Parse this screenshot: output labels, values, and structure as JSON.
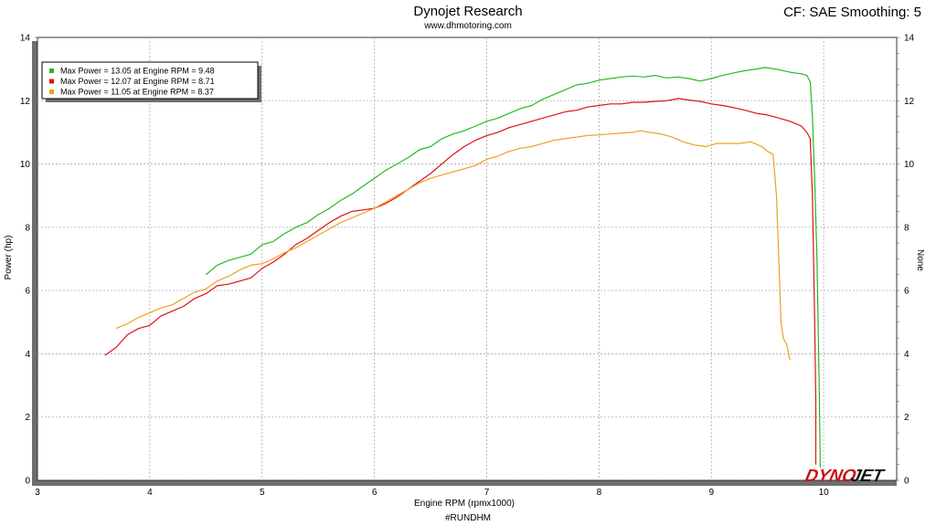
{
  "header": {
    "title": "Dynojet Research",
    "subtitle": "www.dhmotoring.com",
    "correction": "CF: SAE Smoothing: 5"
  },
  "footer": {
    "tag": "#RUNDHM"
  },
  "logo": {
    "text": "DYNOJET",
    "part1": "DYNO",
    "part2": "JET"
  },
  "chart_data": {
    "type": "line",
    "xlabel": "Engine RPM (rpmx1000)",
    "ylabel": "Power (hp)",
    "y2label": "None",
    "xlim": [
      3,
      10.65
    ],
    "ylim": [
      0,
      14
    ],
    "xticks": [
      3,
      4,
      5,
      6,
      7,
      8,
      9,
      10
    ],
    "yticks": [
      0,
      2,
      4,
      6,
      8,
      10,
      12,
      14
    ],
    "grid": true,
    "legend_position": "top-left",
    "series": [
      {
        "name": "Max Power = 13.05 at Engine RPM = 9.48",
        "color": "#22bb22",
        "points": [
          [
            4.5,
            6.5
          ],
          [
            4.6,
            6.8
          ],
          [
            4.7,
            6.95
          ],
          [
            4.8,
            7.05
          ],
          [
            4.9,
            7.15
          ],
          [
            5.0,
            7.45
          ],
          [
            5.1,
            7.55
          ],
          [
            5.2,
            7.8
          ],
          [
            5.3,
            8.0
          ],
          [
            5.4,
            8.15
          ],
          [
            5.5,
            8.4
          ],
          [
            5.6,
            8.6
          ],
          [
            5.7,
            8.85
          ],
          [
            5.8,
            9.05
          ],
          [
            5.9,
            9.3
          ],
          [
            6.0,
            9.55
          ],
          [
            6.1,
            9.8
          ],
          [
            6.2,
            10.0
          ],
          [
            6.3,
            10.2
          ],
          [
            6.4,
            10.45
          ],
          [
            6.5,
            10.55
          ],
          [
            6.6,
            10.8
          ],
          [
            6.7,
            10.95
          ],
          [
            6.8,
            11.05
          ],
          [
            6.9,
            11.2
          ],
          [
            7.0,
            11.35
          ],
          [
            7.1,
            11.45
          ],
          [
            7.2,
            11.6
          ],
          [
            7.3,
            11.75
          ],
          [
            7.4,
            11.85
          ],
          [
            7.5,
            12.05
          ],
          [
            7.6,
            12.2
          ],
          [
            7.7,
            12.35
          ],
          [
            7.8,
            12.5
          ],
          [
            7.9,
            12.55
          ],
          [
            8.0,
            12.65
          ],
          [
            8.1,
            12.7
          ],
          [
            8.2,
            12.75
          ],
          [
            8.3,
            12.78
          ],
          [
            8.4,
            12.75
          ],
          [
            8.5,
            12.8
          ],
          [
            8.6,
            12.72
          ],
          [
            8.7,
            12.75
          ],
          [
            8.8,
            12.7
          ],
          [
            8.9,
            12.62
          ],
          [
            9.0,
            12.7
          ],
          [
            9.1,
            12.8
          ],
          [
            9.2,
            12.88
          ],
          [
            9.3,
            12.95
          ],
          [
            9.4,
            13.0
          ],
          [
            9.48,
            13.05
          ],
          [
            9.6,
            12.98
          ],
          [
            9.7,
            12.9
          ],
          [
            9.8,
            12.85
          ],
          [
            9.85,
            12.8
          ],
          [
            9.88,
            12.6
          ],
          [
            9.9,
            11.5
          ],
          [
            9.92,
            9.5
          ],
          [
            9.94,
            7.0
          ],
          [
            9.96,
            3.0
          ],
          [
            9.97,
            0.4
          ]
        ]
      },
      {
        "name": "Max Power = 12.07 at Engine RPM = 8.71",
        "color": "#dd1111",
        "points": [
          [
            3.6,
            3.95
          ],
          [
            3.7,
            4.2
          ],
          [
            3.8,
            4.6
          ],
          [
            3.9,
            4.8
          ],
          [
            4.0,
            4.9
          ],
          [
            4.1,
            5.2
          ],
          [
            4.2,
            5.35
          ],
          [
            4.3,
            5.5
          ],
          [
            4.4,
            5.75
          ],
          [
            4.5,
            5.9
          ],
          [
            4.6,
            6.15
          ],
          [
            4.7,
            6.2
          ],
          [
            4.8,
            6.3
          ],
          [
            4.9,
            6.4
          ],
          [
            5.0,
            6.7
          ],
          [
            5.1,
            6.9
          ],
          [
            5.2,
            7.15
          ],
          [
            5.3,
            7.45
          ],
          [
            5.4,
            7.65
          ],
          [
            5.5,
            7.9
          ],
          [
            5.6,
            8.15
          ],
          [
            5.7,
            8.35
          ],
          [
            5.8,
            8.5
          ],
          [
            5.9,
            8.55
          ],
          [
            6.0,
            8.6
          ],
          [
            6.1,
            8.75
          ],
          [
            6.2,
            8.95
          ],
          [
            6.3,
            9.2
          ],
          [
            6.4,
            9.45
          ],
          [
            6.5,
            9.7
          ],
          [
            6.6,
            10.0
          ],
          [
            6.7,
            10.3
          ],
          [
            6.8,
            10.55
          ],
          [
            6.9,
            10.75
          ],
          [
            7.0,
            10.9
          ],
          [
            7.1,
            11.0
          ],
          [
            7.2,
            11.15
          ],
          [
            7.3,
            11.25
          ],
          [
            7.4,
            11.35
          ],
          [
            7.5,
            11.45
          ],
          [
            7.6,
            11.55
          ],
          [
            7.7,
            11.65
          ],
          [
            7.8,
            11.7
          ],
          [
            7.9,
            11.8
          ],
          [
            8.0,
            11.85
          ],
          [
            8.1,
            11.9
          ],
          [
            8.2,
            11.9
          ],
          [
            8.3,
            11.95
          ],
          [
            8.4,
            11.95
          ],
          [
            8.5,
            11.98
          ],
          [
            8.6,
            12.0
          ],
          [
            8.71,
            12.07
          ],
          [
            8.8,
            12.02
          ],
          [
            8.9,
            11.98
          ],
          [
            9.0,
            11.9
          ],
          [
            9.1,
            11.85
          ],
          [
            9.2,
            11.78
          ],
          [
            9.3,
            11.7
          ],
          [
            9.4,
            11.6
          ],
          [
            9.5,
            11.55
          ],
          [
            9.6,
            11.45
          ],
          [
            9.7,
            11.35
          ],
          [
            9.8,
            11.2
          ],
          [
            9.85,
            11.0
          ],
          [
            9.88,
            10.8
          ],
          [
            9.9,
            9.0
          ],
          [
            9.92,
            5.0
          ],
          [
            9.93,
            2.5
          ],
          [
            9.93,
            0.5
          ]
        ]
      },
      {
        "name": "Max Power = 11.05 at Engine RPM = 8.37",
        "color": "#f0a020",
        "points": [
          [
            3.7,
            4.8
          ],
          [
            3.8,
            4.95
          ],
          [
            3.9,
            5.15
          ],
          [
            4.0,
            5.3
          ],
          [
            4.1,
            5.45
          ],
          [
            4.2,
            5.55
          ],
          [
            4.3,
            5.75
          ],
          [
            4.4,
            5.95
          ],
          [
            4.5,
            6.05
          ],
          [
            4.6,
            6.3
          ],
          [
            4.7,
            6.45
          ],
          [
            4.8,
            6.65
          ],
          [
            4.9,
            6.8
          ],
          [
            5.0,
            6.85
          ],
          [
            5.1,
            7.0
          ],
          [
            5.2,
            7.2
          ],
          [
            5.3,
            7.35
          ],
          [
            5.4,
            7.55
          ],
          [
            5.5,
            7.75
          ],
          [
            5.6,
            7.95
          ],
          [
            5.7,
            8.15
          ],
          [
            5.8,
            8.3
          ],
          [
            5.9,
            8.45
          ],
          [
            6.0,
            8.6
          ],
          [
            6.1,
            8.8
          ],
          [
            6.2,
            9.0
          ],
          [
            6.3,
            9.2
          ],
          [
            6.4,
            9.4
          ],
          [
            6.5,
            9.55
          ],
          [
            6.6,
            9.65
          ],
          [
            6.7,
            9.75
          ],
          [
            6.8,
            9.85
          ],
          [
            6.9,
            9.95
          ],
          [
            7.0,
            10.15
          ],
          [
            7.1,
            10.25
          ],
          [
            7.2,
            10.4
          ],
          [
            7.3,
            10.5
          ],
          [
            7.4,
            10.55
          ],
          [
            7.5,
            10.65
          ],
          [
            7.6,
            10.75
          ],
          [
            7.7,
            10.8
          ],
          [
            7.8,
            10.85
          ],
          [
            7.9,
            10.9
          ],
          [
            8.0,
            10.92
          ],
          [
            8.1,
            10.95
          ],
          [
            8.2,
            10.98
          ],
          [
            8.3,
            11.0
          ],
          [
            8.37,
            11.05
          ],
          [
            8.45,
            11.0
          ],
          [
            8.55,
            10.95
          ],
          [
            8.65,
            10.85
          ],
          [
            8.75,
            10.7
          ],
          [
            8.85,
            10.6
          ],
          [
            8.95,
            10.55
          ],
          [
            9.05,
            10.65
          ],
          [
            9.15,
            10.65
          ],
          [
            9.25,
            10.65
          ],
          [
            9.35,
            10.7
          ],
          [
            9.45,
            10.55
          ],
          [
            9.5,
            10.4
          ],
          [
            9.55,
            10.3
          ],
          [
            9.58,
            9.0
          ],
          [
            9.6,
            7.0
          ],
          [
            9.62,
            5.0
          ],
          [
            9.64,
            4.5
          ],
          [
            9.67,
            4.3
          ],
          [
            9.7,
            3.8
          ]
        ]
      }
    ]
  }
}
